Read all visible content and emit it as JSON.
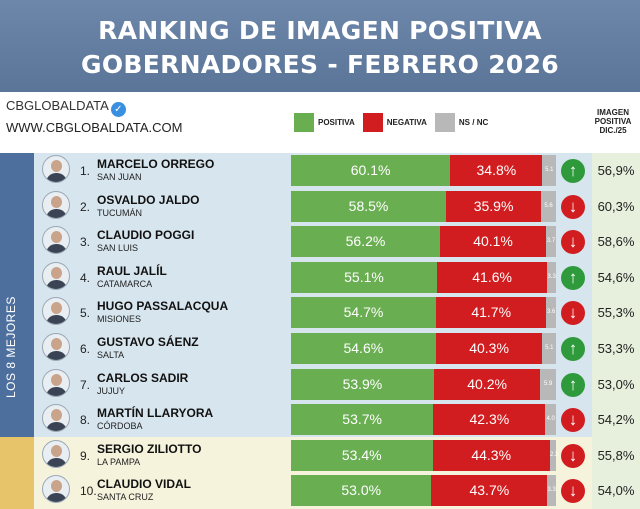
{
  "header": {
    "title_line1": "RANKING DE IMAGEN POSITIVA",
    "title_line2": "GOBERNADORES - FEBRERO 2026"
  },
  "brand": {
    "name": "CBGLOBALDATA",
    "verified_icon": "verified-check-icon",
    "website": "WWW.CBGLOBALDATA.COM"
  },
  "legend": {
    "positive": "POSITIVA",
    "negative": "NEGATIVA",
    "nsnc": "NS / NC"
  },
  "prev_header": [
    "IMAGEN",
    "POSITIVA",
    "DIC./25"
  ],
  "side_label": "LOS 8 MEJORES",
  "colors": {
    "positive": "#6aae52",
    "negative": "#d11d1f",
    "nsnc": "#b8b8b8",
    "header": "#5a7598",
    "top_group": "#d7e5ee",
    "bottom_group": "#f6f3dd"
  },
  "chart_data": {
    "type": "bar",
    "title": "RANKING DE IMAGEN POSITIVA GOBERNADORES - FEBRERO 2026",
    "stacked": true,
    "series": [
      {
        "name": "POSITIVA",
        "values": [
          60.1,
          58.5,
          56.2,
          55.1,
          54.7,
          54.6,
          53.9,
          53.7,
          53.4,
          53.0
        ]
      },
      {
        "name": "NEGATIVA",
        "values": [
          34.8,
          35.9,
          40.1,
          41.6,
          41.7,
          40.3,
          40.2,
          42.3,
          44.3,
          43.7
        ]
      },
      {
        "name": "NS / NC",
        "values": [
          5.1,
          5.6,
          3.7,
          3.3,
          3.6,
          5.1,
          5.9,
          4.0,
          2.3,
          3.3
        ]
      }
    ],
    "rows": [
      {
        "rank": "1.",
        "name": "MARCELO ORREGO",
        "province": "SAN JUAN",
        "positive_label": "60.1%",
        "negative_label": "34.8%",
        "nsnc_label": "5.1",
        "trend": "up",
        "prev_label": "56,9%"
      },
      {
        "rank": "2.",
        "name": "OSVALDO JALDO",
        "province": "TUCUMÁN",
        "positive_label": "58.5%",
        "negative_label": "35.9%",
        "nsnc_label": "5.6",
        "trend": "down",
        "prev_label": "60,3%"
      },
      {
        "rank": "3.",
        "name": "CLAUDIO POGGI",
        "province": "SAN LUIS",
        "positive_label": "56.2%",
        "negative_label": "40.1%",
        "nsnc_label": "3.7",
        "trend": "down",
        "prev_label": "58,6%"
      },
      {
        "rank": "4.",
        "name": "RAUL JALÍL",
        "province": "CATAMARCA",
        "positive_label": "55.1%",
        "negative_label": "41.6%",
        "nsnc_label": "3.3",
        "trend": "up",
        "prev_label": "54,6%"
      },
      {
        "rank": "5.",
        "name": "HUGO PASSALACQUA",
        "province": "MISIONES",
        "positive_label": "54.7%",
        "negative_label": "41.7%",
        "nsnc_label": "3.6",
        "trend": "down",
        "prev_label": "55,3%"
      },
      {
        "rank": "6.",
        "name": "GUSTAVO SÁENZ",
        "province": "SALTA",
        "positive_label": "54.6%",
        "negative_label": "40.3%",
        "nsnc_label": "5.1",
        "trend": "up",
        "prev_label": "53,3%"
      },
      {
        "rank": "7.",
        "name": "CARLOS SADIR",
        "province": "JUJUY",
        "positive_label": "53.9%",
        "negative_label": "40.2%",
        "nsnc_label": "5.9",
        "trend": "up",
        "prev_label": "53,0%"
      },
      {
        "rank": "8.",
        "name": "MARTÍN LLARYORA",
        "province": "CÓRDOBA",
        "positive_label": "53.7%",
        "negative_label": "42.3%",
        "nsnc_label": "4.0",
        "trend": "down",
        "prev_label": "54,2%"
      },
      {
        "rank": "9.",
        "name": "SERGIO ZILIOTTO",
        "province": "LA PAMPA",
        "positive_label": "53.4%",
        "negative_label": "44.3%",
        "nsnc_label": "2.3",
        "trend": "down",
        "prev_label": "55,8%"
      },
      {
        "rank": "10.",
        "name": "CLAUDIO VIDAL",
        "province": "SANTA CRUZ",
        "positive_label": "53.0%",
        "negative_label": "43.7%",
        "nsnc_label": "3.3",
        "trend": "down",
        "prev_label": "54,0%"
      }
    ],
    "xlim": [
      0,
      100
    ],
    "legend_position": "top"
  }
}
